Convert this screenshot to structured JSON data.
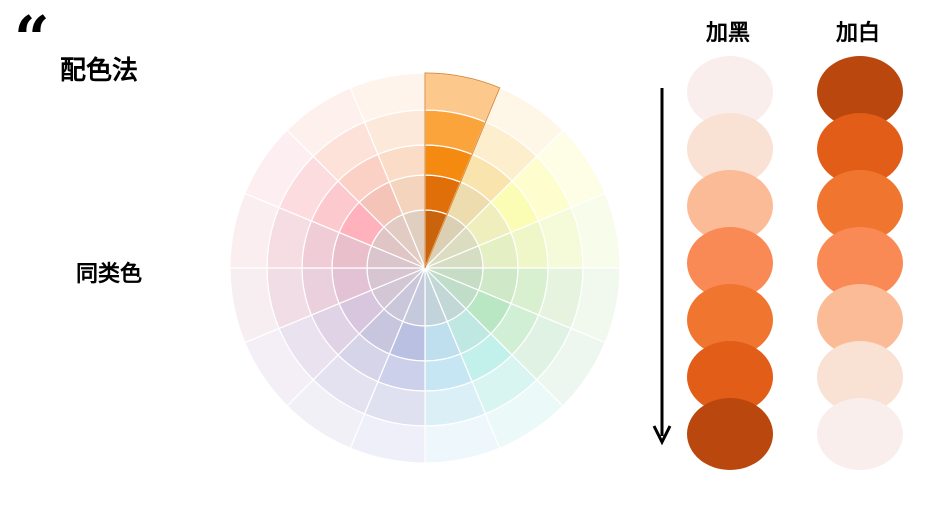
{
  "header": {
    "quote_mark": "“",
    "title": "配色法"
  },
  "side_label": "同类色",
  "columns": {
    "darken": {
      "title": "加黑",
      "colors": [
        "#f9eeec",
        "#f9e1d3",
        "#fbbb97",
        "#f98a55",
        "#f07630",
        "#e15d18",
        "#b9470e"
      ]
    },
    "lighten": {
      "title": "加白",
      "colors": [
        "#b9470e",
        "#e15d18",
        "#f07630",
        "#f98a55",
        "#fbbb97",
        "#f9e1d3",
        "#f9eeec"
      ]
    }
  },
  "wheel": {
    "highlight_sector": 0,
    "sectors": [
      {
        "name": "orange",
        "rings": [
          "#c9640c",
          "#e06f0a",
          "#f58a11",
          "#fba43c",
          "#fdc88c"
        ]
      },
      {
        "name": "yellow-orange",
        "rings": [
          "#dcd0b4",
          "#ecdcae",
          "#fae4ad",
          "#fdeecd",
          "#fef7e8"
        ]
      },
      {
        "name": "yellow",
        "rings": [
          "#dbdcc0",
          "#eeefbc",
          "#fbfdb4",
          "#fdfdcd",
          "#fefee6"
        ]
      },
      {
        "name": "yellow-green",
        "rings": [
          "#d5ddc2",
          "#e5efc4",
          "#eff7c8",
          "#f5fad8",
          "#f8fceb"
        ]
      },
      {
        "name": "green",
        "rings": [
          "#c6dcc4",
          "#cfe9c8",
          "#d8f0cf",
          "#e6f4df",
          "#f1f9ef"
        ]
      },
      {
        "name": "light-green",
        "rings": [
          "#c0ddc9",
          "#b9e6c3",
          "#d1efd5",
          "#e0f2e3",
          "#edf7ef"
        ]
      },
      {
        "name": "cyan",
        "rings": [
          "#c2d8d6",
          "#bfe8e2",
          "#c2f0eb",
          "#d8f5f2",
          "#ebf9f8"
        ]
      },
      {
        "name": "sky",
        "rings": [
          "#c3d3dc",
          "#bfdfee",
          "#c6e6f3",
          "#dbeff7",
          "#eef7fb"
        ]
      },
      {
        "name": "blue",
        "rings": [
          "#c5c9dc",
          "#b9c0e2",
          "#cdd0ea",
          "#dfe1f1",
          "#eeeff8"
        ]
      },
      {
        "name": "indigo",
        "rings": [
          "#c9c7d9",
          "#c8c5df",
          "#d6d4e8",
          "#e4e2f0",
          "#f1f0f7"
        ]
      },
      {
        "name": "violet",
        "rings": [
          "#d3c7d6",
          "#d7c6de",
          "#e1d3e6",
          "#ebe2ef",
          "#f4eff7"
        ]
      },
      {
        "name": "purple",
        "rings": [
          "#d7c6d2",
          "#e2c2d4",
          "#eacfdc",
          "#f0dde5",
          "#f7eef2"
        ]
      },
      {
        "name": "magenta",
        "rings": [
          "#dbc5cc",
          "#e8bfca",
          "#f0ccd6",
          "#f5dde3",
          "#faeef1"
        ]
      },
      {
        "name": "pink",
        "rings": [
          "#dfc5c5",
          "#ffb2bb",
          "#fcc9cf",
          "#fddce0",
          "#fdeff1"
        ]
      },
      {
        "name": "red-orange",
        "rings": [
          "#e2cbc3",
          "#f4c4b8",
          "#fbd1c6",
          "#fde2da",
          "#fef1ed"
        ]
      },
      {
        "name": "peach",
        "rings": [
          "#e0cfc1",
          "#f5d4bd",
          "#fbddc7",
          "#fde9d9",
          "#fef4ec"
        ]
      }
    ]
  }
}
